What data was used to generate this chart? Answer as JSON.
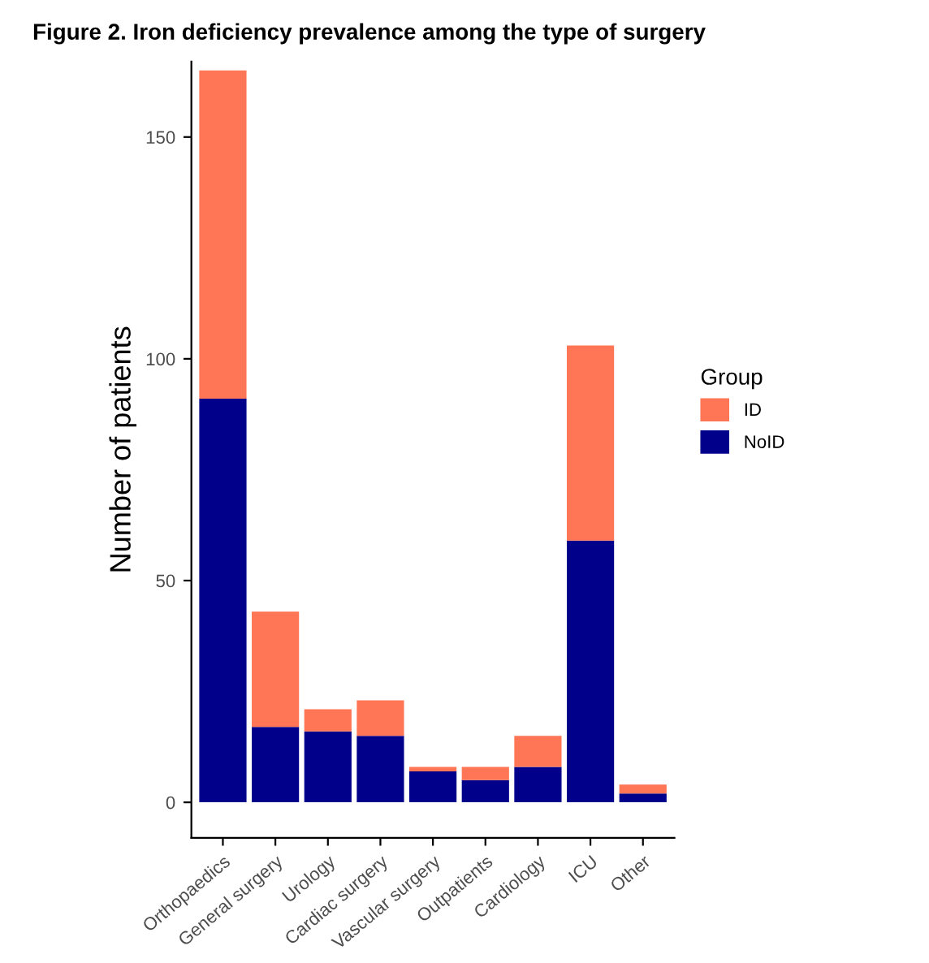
{
  "chart_data": {
    "type": "bar",
    "title": "Figure 2. Iron deficiency prevalence among the type of surgery",
    "ylabel": "Number of patients",
    "legend_title": "Group",
    "categories": [
      "Orthopaedics",
      "General surgery",
      "Urology",
      "Cardiac surgery",
      "Vascular surgery",
      "Outpatients",
      "Cardiology",
      "ICU",
      "Other"
    ],
    "series": [
      {
        "name": "NoID",
        "color": "#00008b",
        "values": [
          91,
          17,
          16,
          15,
          7,
          5,
          8,
          59,
          2
        ]
      },
      {
        "name": "ID",
        "color": "#ff7656",
        "values": [
          74,
          26,
          5,
          8,
          1,
          3,
          7,
          44,
          2
        ]
      }
    ],
    "stacked": true,
    "ylim": [
      -8,
      167
    ],
    "yticks": [
      0,
      50,
      100,
      150
    ],
    "grid": false,
    "legend": "right"
  }
}
